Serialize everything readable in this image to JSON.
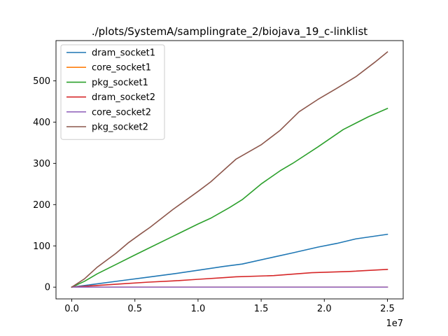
{
  "chart_data": {
    "type": "line",
    "title": "./plots/SystemA/samplingrate_2/biojava_19_c-linklist",
    "xlabel": "",
    "ylabel": "",
    "x_offset_label": "1e7",
    "xlim": [
      -1.25,
      26.25
    ],
    "ylim": [
      -28.5,
      597.5
    ],
    "x_ticks": [
      0.0,
      0.5,
      1.0,
      1.5,
      2.0,
      2.5
    ],
    "x_tick_labels": [
      "0.0",
      "0.5",
      "1.0",
      "1.5",
      "2.0",
      "2.5"
    ],
    "y_ticks": [
      0,
      100,
      200,
      300,
      400,
      500
    ],
    "y_tick_labels": [
      "0",
      "100",
      "200",
      "300",
      "400",
      "500"
    ],
    "grid": false,
    "legend_position": "top-left",
    "series": [
      {
        "name": "dram_socket1",
        "color": "#1f77b4",
        "x": [
          0,
          1.5,
          4,
          6,
          8,
          10,
          12,
          13.5,
          16,
          17.5,
          19.5,
          21,
          22.5,
          25
        ],
        "y": [
          0,
          6,
          16,
          24,
          32,
          41,
          50,
          56,
          73,
          83,
          97,
          106,
          117,
          128
        ]
      },
      {
        "name": "core_socket1",
        "color": "#ff7f0e",
        "x": [
          0,
          25
        ],
        "y": [
          0,
          0
        ]
      },
      {
        "name": "pkg_socket1",
        "color": "#2ca02c",
        "x": [
          0,
          1,
          2,
          3.5,
          5,
          6,
          8,
          10,
          11,
          12.5,
          13.5,
          15,
          16.5,
          17.5,
          19.5,
          21.5,
          23.5,
          25
        ],
        "y": [
          0,
          14,
          32,
          55,
          78,
          93,
          123,
          153,
          167,
          193,
          212,
          250,
          282,
          300,
          340,
          382,
          413,
          433
        ]
      },
      {
        "name": "dram_socket2",
        "color": "#d62728",
        "x": [
          0,
          2,
          4,
          6,
          8,
          10,
          12,
          13,
          16,
          19,
          22,
          25
        ],
        "y": [
          0,
          4,
          8,
          12,
          15,
          19,
          23,
          25,
          28,
          35,
          38,
          43
        ]
      },
      {
        "name": "core_socket2",
        "color": "#9467bd",
        "x": [
          0,
          25
        ],
        "y": [
          0,
          0
        ]
      },
      {
        "name": "pkg_socket2",
        "color": "#8c564b",
        "x": [
          0,
          1,
          2,
          3.5,
          4.5,
          5.5,
          6.2,
          8,
          10,
          11,
          13,
          15,
          16.5,
          18,
          19.5,
          21,
          22.5,
          24,
          25
        ],
        "y": [
          0,
          20,
          48,
          82,
          108,
          130,
          145,
          188,
          232,
          255,
          310,
          345,
          380,
          425,
          455,
          482,
          510,
          545,
          570
        ]
      }
    ]
  }
}
